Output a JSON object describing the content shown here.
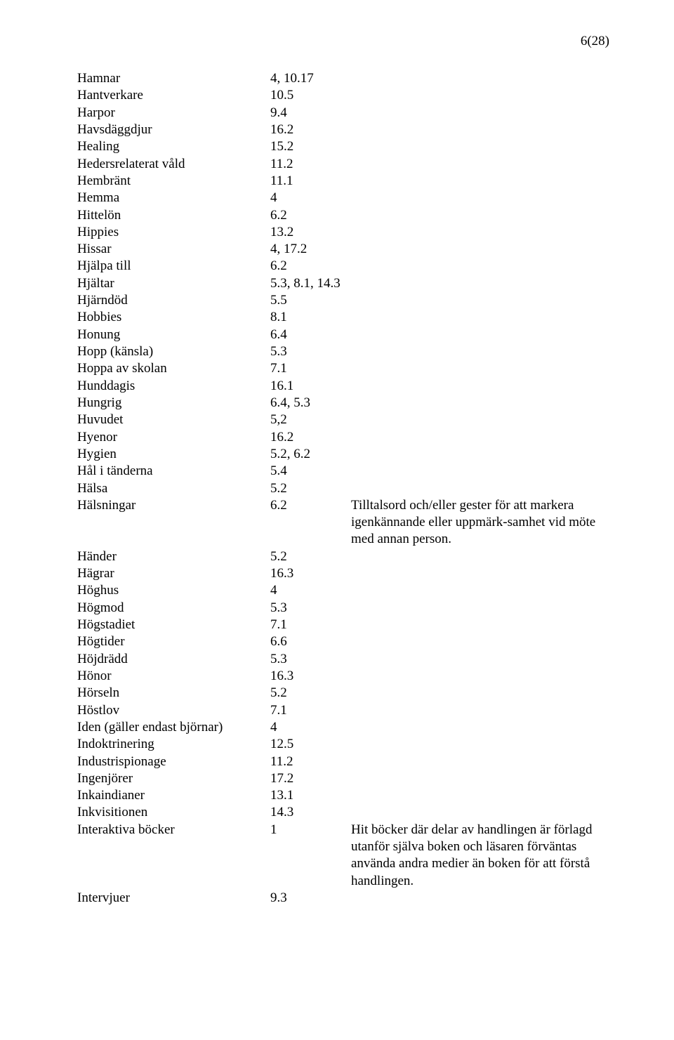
{
  "pageNumber": "6(28)",
  "rows": [
    {
      "term": "Hamnar",
      "value": "4, 10.17",
      "note": ""
    },
    {
      "term": "Hantverkare",
      "value": "10.5",
      "note": ""
    },
    {
      "term": "Harpor",
      "value": "9.4",
      "note": ""
    },
    {
      "term": "Havsdäggdjur",
      "value": "16.2",
      "note": ""
    },
    {
      "term": "Healing",
      "value": "15.2",
      "note": ""
    },
    {
      "term": "Hedersrelaterat våld",
      "value": "11.2",
      "note": ""
    },
    {
      "term": "Hembränt",
      "value": "11.1",
      "note": ""
    },
    {
      "term": "Hemma",
      "value": "4",
      "note": ""
    },
    {
      "term": "Hittelön",
      "value": "6.2",
      "note": ""
    },
    {
      "term": "Hippies",
      "value": "13.2",
      "note": ""
    },
    {
      "term": "Hissar",
      "value": "4, 17.2",
      "note": ""
    },
    {
      "term": "Hjälpa till",
      "value": "6.2",
      "note": ""
    },
    {
      "term": "Hjältar",
      "value": "5.3, 8.1, 14.3",
      "note": ""
    },
    {
      "term": "Hjärndöd",
      "value": "5.5",
      "note": ""
    },
    {
      "term": "Hobbies",
      "value": "8.1",
      "note": ""
    },
    {
      "term": "Honung",
      "value": "6.4",
      "note": ""
    },
    {
      "term": "Hopp (känsla)",
      "value": "5.3",
      "note": ""
    },
    {
      "term": "Hoppa av skolan",
      "value": "7.1",
      "note": ""
    },
    {
      "term": "Hunddagis",
      "value": "16.1",
      "note": ""
    },
    {
      "term": "Hungrig",
      "value": "6.4, 5.3",
      "note": ""
    },
    {
      "term": "Huvudet",
      "value": "5,2",
      "note": ""
    },
    {
      "term": "Hyenor",
      "value": "16.2",
      "note": ""
    },
    {
      "term": "Hygien",
      "value": "5.2, 6.2",
      "note": ""
    },
    {
      "term": "Hål i tänderna",
      "value": "5.4",
      "note": ""
    },
    {
      "term": "Hälsa",
      "value": "5.2",
      "note": ""
    },
    {
      "term": "Hälsningar",
      "value": "6.2",
      "note": "Tilltalsord och/eller gester för att markera igenkännande eller uppmärk-samhet vid möte med annan person."
    },
    {
      "term": "Händer",
      "value": "5.2",
      "note": ""
    },
    {
      "term": "Hägrar",
      "value": "16.3",
      "note": ""
    },
    {
      "term": "Höghus",
      "value": "4",
      "note": ""
    },
    {
      "term": "Högmod",
      "value": "5.3",
      "note": ""
    },
    {
      "term": "Högstadiet",
      "value": "7.1",
      "note": ""
    },
    {
      "term": "Högtider",
      "value": "6.6",
      "note": ""
    },
    {
      "term": "Höjdrädd",
      "value": "5.3",
      "note": ""
    },
    {
      "term": "Hönor",
      "value": "16.3",
      "note": ""
    },
    {
      "term": "Hörseln",
      "value": "5.2",
      "note": ""
    },
    {
      "term": "Höstlov",
      "value": "7.1",
      "note": ""
    },
    {
      "term": "Iden (gäller endast björnar)",
      "value": "4",
      "note": ""
    },
    {
      "term": "Indoktrinering",
      "value": "12.5",
      "note": ""
    },
    {
      "term": "Industrispionage",
      "value": "11.2",
      "note": ""
    },
    {
      "term": "Ingenjörer",
      "value": "17.2",
      "note": ""
    },
    {
      "term": "Inkaindianer",
      "value": "13.1",
      "note": ""
    },
    {
      "term": "Inkvisitionen",
      "value": "14.3",
      "note": ""
    },
    {
      "term": "Interaktiva böcker",
      "value": "1",
      "note": "Hit böcker där delar av handlingen är förlagd utanför själva boken och läsaren förväntas använda andra medier än boken för att förstå handlingen."
    },
    {
      "term": "Intervjuer",
      "value": "9.3",
      "note": ""
    }
  ]
}
